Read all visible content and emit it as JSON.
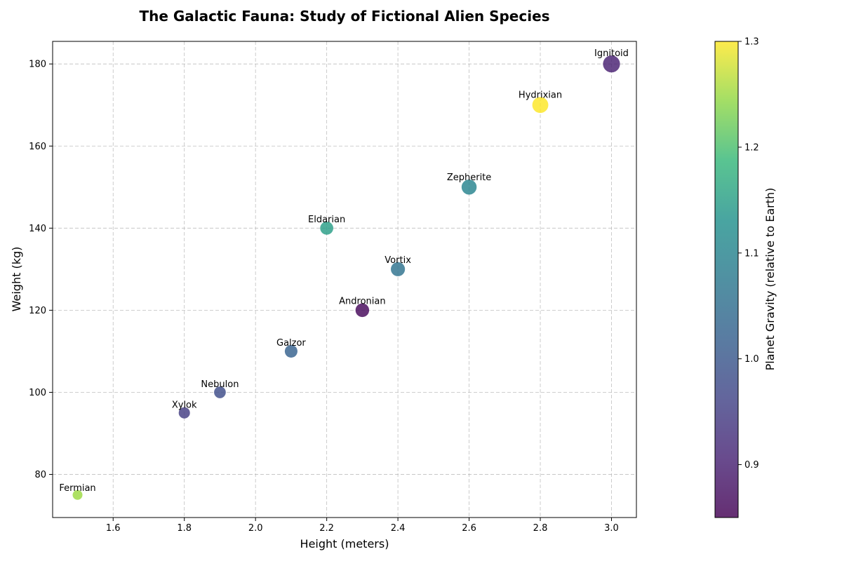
{
  "chart_data": {
    "type": "scatter",
    "title": "The Galactic Fauna: Study of Fictional Alien Species",
    "xlabel": "Height (meters)",
    "ylabel": "Weight (kg)",
    "xlim": [
      1.43,
      3.07
    ],
    "ylim": [
      69.5,
      185.5
    ],
    "xticks": [
      "1.6",
      "1.8",
      "2.0",
      "2.2",
      "2.4",
      "2.6",
      "2.8",
      "3.0"
    ],
    "yticks": [
      "80",
      "100",
      "120",
      "140",
      "160",
      "180"
    ],
    "grid": true,
    "colorbar": {
      "label": "Planet Gravity (relative to Earth)",
      "min": 0.85,
      "max": 1.3,
      "ticks": [
        "0.9",
        "1.0",
        "1.1",
        "1.2",
        "1.3"
      ],
      "colormap": "viridis"
    },
    "points": [
      {
        "name": "Fermian",
        "height": 1.5,
        "weight": 75,
        "gravity": 1.25
      },
      {
        "name": "Xylok",
        "height": 1.8,
        "weight": 95,
        "gravity": 0.95
      },
      {
        "name": "Nebulon",
        "height": 1.9,
        "weight": 100,
        "gravity": 0.98
      },
      {
        "name": "Galzor",
        "height": 2.1,
        "weight": 110,
        "gravity": 1.02
      },
      {
        "name": "Eldarian",
        "height": 2.2,
        "weight": 140,
        "gravity": 1.15
      },
      {
        "name": "Andronian",
        "height": 2.3,
        "weight": 120,
        "gravity": 0.86
      },
      {
        "name": "Vortix",
        "height": 2.4,
        "weight": 130,
        "gravity": 1.06
      },
      {
        "name": "Zepherite",
        "height": 2.6,
        "weight": 150,
        "gravity": 1.1
      },
      {
        "name": "Hydrixian",
        "height": 2.8,
        "weight": 170,
        "gravity": 1.3
      },
      {
        "name": "Ignitoid",
        "height": 3.0,
        "weight": 180,
        "gravity": 0.9
      }
    ]
  }
}
